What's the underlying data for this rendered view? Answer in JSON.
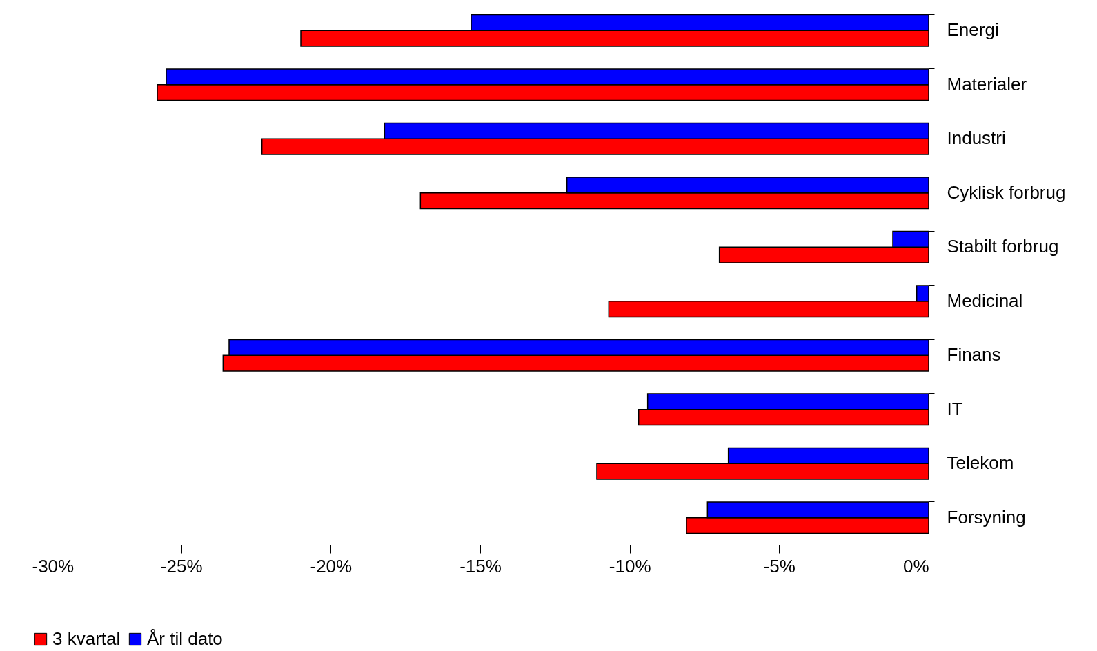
{
  "chart_data": {
    "type": "bar",
    "orientation": "horizontal",
    "categories": [
      "Energi",
      "Materialer",
      "Industri",
      "Cyklisk forbrug",
      "Stabilt forbrug",
      "Medicinal",
      "Finans",
      "IT",
      "Telekom",
      "Forsyning"
    ],
    "series": [
      {
        "name": "3 kvartal",
        "color": "#ff0000",
        "values": [
          -21.0,
          -25.8,
          -22.3,
          -17.0,
          -7.0,
          -10.7,
          -23.6,
          -9.7,
          -11.1,
          -8.1
        ]
      },
      {
        "name": "År til dato",
        "color": "#0000ff",
        "values": [
          -15.3,
          -25.5,
          -18.2,
          -12.1,
          -1.2,
          -0.4,
          -23.4,
          -9.4,
          -6.7,
          -7.4
        ]
      }
    ],
    "xlim": [
      -30,
      0
    ],
    "xticks": [
      {
        "value": -30,
        "label": "-30%"
      },
      {
        "value": -25,
        "label": "-25%"
      },
      {
        "value": -20,
        "label": "-20%"
      },
      {
        "value": -15,
        "label": "-15%"
      },
      {
        "value": -10,
        "label": "-10%"
      },
      {
        "value": -5,
        "label": "-5%"
      },
      {
        "value": 0,
        "label": "0%"
      }
    ],
    "grid": false,
    "legend": "bottom"
  }
}
